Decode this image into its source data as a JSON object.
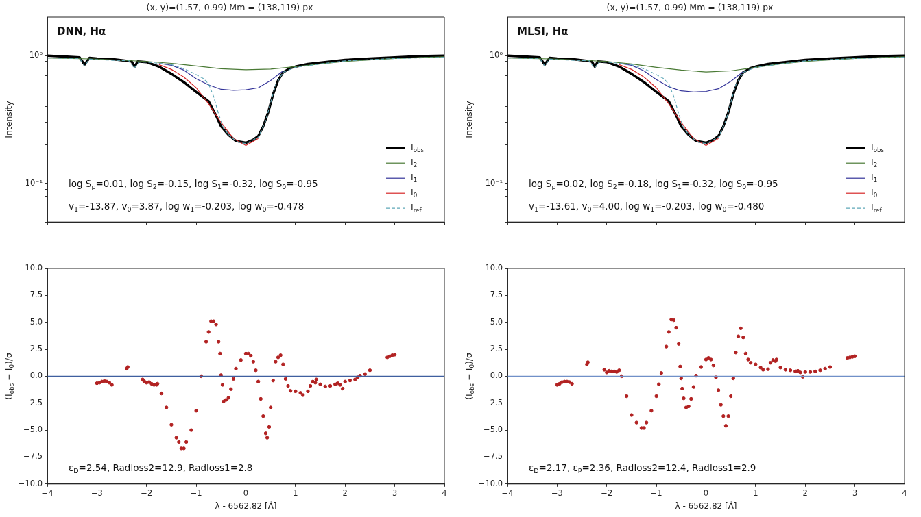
{
  "chart_data": [
    {
      "type": "line",
      "title": "(x, y)=(1.57,-0.99) Mm = (138,119) px",
      "subtitle": "DNN, Hα",
      "ylabel": "Intensity",
      "log": "y",
      "grid": false,
      "legend": "bottom right",
      "marker": "none",
      "tick_labels": "y",
      "xlim": [
        -4,
        4
      ],
      "xticks": [
        -4,
        -3,
        -2,
        -1,
        0,
        1,
        2,
        3,
        4
      ],
      "ylim": [
        0.05,
        2
      ],
      "yticks": [
        {
          "value": 0.05,
          "label": null
        },
        {
          "value": 0.06,
          "label": null
        },
        {
          "value": 0.07,
          "label": null
        },
        {
          "value": 0.08,
          "label": null
        },
        {
          "value": 0.09,
          "label": null
        },
        {
          "value": 0.1,
          "label": "10⁻¹"
        },
        {
          "value": 0.2,
          "label": null
        },
        {
          "value": 0.3,
          "label": null
        },
        {
          "value": 0.4,
          "label": null
        },
        {
          "value": 0.5,
          "label": null
        },
        {
          "value": 0.6,
          "label": null
        },
        {
          "value": 0.7,
          "label": null
        },
        {
          "value": 0.8,
          "label": null
        },
        {
          "value": 0.9,
          "label": null
        },
        {
          "value": 1,
          "label": "10⁰"
        }
      ],
      "annotations": [
        "log S$_{p}$=0.01, log S$_{2}$=-0.15, log S$_{1}$=-0.32, log S$_{0}$=-0.95",
        "v$_{1}$=-13.87, v$_{0}$=3.87, log w$_{1}$=-0.203, log w$_{0}$=-0.478"
      ],
      "series": [
        {
          "name": "I$_{obs}$",
          "color": "#000000",
          "x": [
            -4,
            -3.6,
            -3.35,
            -3.25,
            -3.15,
            -3.0,
            -2.7,
            -2.5,
            -2.3,
            -2.24,
            -2.18,
            -2.0,
            -1.75,
            -1.5,
            -1.25,
            -1.0,
            -0.85,
            -0.75,
            -0.6,
            -0.5,
            -0.35,
            -0.2,
            0,
            0.15,
            0.25,
            0.35,
            0.45,
            0.55,
            0.65,
            0.75,
            0.9,
            1.0,
            1.25,
            1.5,
            2.0,
            2.5,
            3.0,
            3.5,
            4.0
          ],
          "values": [
            1.0,
            0.98,
            0.97,
            0.85,
            0.96,
            0.95,
            0.94,
            0.92,
            0.9,
            0.82,
            0.9,
            0.89,
            0.82,
            0.72,
            0.62,
            0.52,
            0.47,
            0.44,
            0.34,
            0.28,
            0.24,
            0.215,
            0.208,
            0.22,
            0.235,
            0.28,
            0.36,
            0.5,
            0.64,
            0.74,
            0.8,
            0.82,
            0.86,
            0.88,
            0.925,
            0.95,
            0.97,
            0.99,
            1.0
          ]
        },
        {
          "name": "I$_{2}$",
          "color": "#4a7a35",
          "x": [
            -4,
            -3,
            -2,
            -1.5,
            -1,
            -0.5,
            0,
            0.5,
            1,
            1.5,
            2,
            3,
            4
          ],
          "values": [
            0.96,
            0.94,
            0.9,
            0.87,
            0.83,
            0.79,
            0.775,
            0.785,
            0.82,
            0.86,
            0.9,
            0.95,
            0.98
          ]
        },
        {
          "name": "I$_{1}$",
          "color": "#333399",
          "x": [
            -1.75,
            -1.5,
            -1.25,
            -1,
            -0.75,
            -0.5,
            -0.25,
            0,
            0.25,
            0.5,
            0.75
          ],
          "values": [
            0.87,
            0.84,
            0.77,
            0.66,
            0.59,
            0.545,
            0.535,
            0.54,
            0.56,
            0.64,
            0.76
          ]
        },
        {
          "name": "I$_{0}$",
          "color": "#d62728",
          "x": [
            -1.75,
            -1.5,
            -1.25,
            -1,
            -0.75,
            -0.5,
            -0.25,
            0,
            0.25
          ],
          "values": [
            0.85,
            0.78,
            0.68,
            0.56,
            0.42,
            0.3,
            0.225,
            0.198,
            0.225
          ]
        },
        {
          "name": "I$_{ref}$",
          "color": "#5fa8b8",
          "line_style": "dashed",
          "x": [
            -4,
            -3.35,
            -3.25,
            -3.15,
            -3,
            -2.35,
            -2.25,
            -2.15,
            -2,
            -1.5,
            -1.25,
            -1,
            -0.85,
            -0.75,
            -0.65,
            -0.55,
            -0.45,
            -0.3,
            -0.15,
            0,
            0.25,
            0.4,
            0.5,
            0.6,
            0.75,
            1,
            1.5,
            2,
            3,
            4
          ],
          "values": [
            0.96,
            0.95,
            0.83,
            0.94,
            0.93,
            0.91,
            0.8,
            0.89,
            0.89,
            0.85,
            0.79,
            0.71,
            0.66,
            0.6,
            0.48,
            0.35,
            0.27,
            0.23,
            0.21,
            0.205,
            0.23,
            0.31,
            0.43,
            0.59,
            0.74,
            0.81,
            0.86,
            0.91,
            0.95,
            0.97
          ]
        }
      ]
    },
    {
      "type": "line",
      "title": "(x, y)=(1.57,-0.99) Mm = (138,119) px",
      "subtitle": "MLSI, Hα",
      "ylabel": "Intensity",
      "log": "y",
      "grid": false,
      "legend": "bottom right",
      "marker": "none",
      "tick_labels": "y",
      "xlim": [
        -4,
        4
      ],
      "xticks": [
        -4,
        -3,
        -2,
        -1,
        0,
        1,
        2,
        3,
        4
      ],
      "ylim": [
        0.05,
        2
      ],
      "yticks": [
        {
          "value": 0.05,
          "label": null
        },
        {
          "value": 0.06,
          "label": null
        },
        {
          "value": 0.07,
          "label": null
        },
        {
          "value": 0.08,
          "label": null
        },
        {
          "value": 0.09,
          "label": null
        },
        {
          "value": 0.1,
          "label": "10⁻¹"
        },
        {
          "value": 0.2,
          "label": null
        },
        {
          "value": 0.3,
          "label": null
        },
        {
          "value": 0.4,
          "label": null
        },
        {
          "value": 0.5,
          "label": null
        },
        {
          "value": 0.6,
          "label": null
        },
        {
          "value": 0.7,
          "label": null
        },
        {
          "value": 0.8,
          "label": null
        },
        {
          "value": 0.9,
          "label": null
        },
        {
          "value": 1,
          "label": "10⁰"
        }
      ],
      "annotations": [
        "log S$_{p}$=0.02, log S$_{2}$=-0.18, log S$_{1}$=-0.32, log S$_{0}$=-0.95",
        "v$_{1}$=-13.61, v$_{0}$=4.00, log w$_{1}$=-0.203, log w$_{0}$=-0.480"
      ],
      "series": [
        {
          "name": "I$_{obs}$",
          "color": "#000000",
          "x": [
            -4,
            -3.6,
            -3.35,
            -3.25,
            -3.15,
            -3.0,
            -2.7,
            -2.5,
            -2.3,
            -2.24,
            -2.18,
            -2.0,
            -1.75,
            -1.5,
            -1.25,
            -1.0,
            -0.85,
            -0.75,
            -0.6,
            -0.5,
            -0.35,
            -0.2,
            0,
            0.15,
            0.25,
            0.35,
            0.45,
            0.55,
            0.65,
            0.75,
            0.9,
            1.0,
            1.25,
            1.5,
            2.0,
            2.5,
            3.0,
            3.5,
            4.0
          ],
          "values": [
            1.0,
            0.98,
            0.97,
            0.85,
            0.96,
            0.95,
            0.94,
            0.92,
            0.9,
            0.82,
            0.9,
            0.89,
            0.82,
            0.72,
            0.62,
            0.52,
            0.47,
            0.44,
            0.34,
            0.28,
            0.24,
            0.215,
            0.208,
            0.22,
            0.235,
            0.28,
            0.36,
            0.5,
            0.64,
            0.74,
            0.8,
            0.82,
            0.86,
            0.88,
            0.925,
            0.95,
            0.97,
            0.99,
            1.0
          ]
        },
        {
          "name": "I$_{2}$",
          "color": "#4a7a35",
          "x": [
            -4,
            -3,
            -2,
            -1.5,
            -1,
            -0.5,
            0,
            0.5,
            1,
            1.5,
            2,
            3,
            4
          ],
          "values": [
            0.96,
            0.94,
            0.9,
            0.86,
            0.81,
            0.77,
            0.745,
            0.76,
            0.81,
            0.86,
            0.9,
            0.95,
            0.98
          ]
        },
        {
          "name": "I$_{1}$",
          "color": "#333399",
          "x": [
            -1.75,
            -1.5,
            -1.25,
            -1,
            -0.75,
            -0.5,
            -0.25,
            0,
            0.25,
            0.5,
            0.75
          ],
          "values": [
            0.87,
            0.84,
            0.76,
            0.65,
            0.57,
            0.53,
            0.52,
            0.525,
            0.55,
            0.63,
            0.75
          ]
        },
        {
          "name": "I$_{0}$",
          "color": "#d62728",
          "x": [
            -1.75,
            -1.5,
            -1.25,
            -1,
            -0.75,
            -0.5,
            -0.25,
            0,
            0.25
          ],
          "values": [
            0.85,
            0.78,
            0.68,
            0.56,
            0.42,
            0.3,
            0.225,
            0.198,
            0.225
          ]
        },
        {
          "name": "I$_{ref}$",
          "color": "#5fa8b8",
          "line_style": "dashed",
          "x": [
            -4,
            -3.35,
            -3.25,
            -3.15,
            -3,
            -2.35,
            -2.25,
            -2.15,
            -2,
            -1.5,
            -1.25,
            -1,
            -0.85,
            -0.75,
            -0.65,
            -0.55,
            -0.45,
            -0.3,
            -0.15,
            0,
            0.25,
            0.4,
            0.5,
            0.6,
            0.75,
            1,
            1.5,
            2,
            3,
            4
          ],
          "values": [
            0.96,
            0.95,
            0.83,
            0.94,
            0.93,
            0.91,
            0.8,
            0.89,
            0.89,
            0.85,
            0.79,
            0.71,
            0.66,
            0.6,
            0.48,
            0.35,
            0.27,
            0.23,
            0.21,
            0.205,
            0.23,
            0.31,
            0.43,
            0.59,
            0.74,
            0.81,
            0.86,
            0.91,
            0.95,
            0.97
          ]
        }
      ]
    },
    {
      "type": "scatter",
      "xlabel": "λ - 6562.82 [Å]",
      "ylabel": "(I$_{obs}$ − I$_{0}$)/σ",
      "grid": false,
      "legend": false,
      "marker": "circle",
      "xlim": [
        -4,
        4
      ],
      "xticks": [
        {
          "value": -4,
          "label": "−4"
        },
        {
          "value": -3,
          "label": "−3"
        },
        {
          "value": -2,
          "label": "−2"
        },
        {
          "value": -1,
          "label": "−1"
        },
        0,
        1,
        2,
        3,
        4
      ],
      "ylim": [
        -10,
        10
      ],
      "yticks": [
        {
          "value": -10,
          "label": "−10.0"
        },
        {
          "value": -7.5,
          "label": "−7.5"
        },
        {
          "value": -5,
          "label": "−5.0"
        },
        {
          "value": -2.5,
          "label": "−2.5"
        },
        {
          "value": 0,
          "label": "0.0"
        },
        {
          "value": 2.5,
          "label": "2.5"
        },
        {
          "value": 5,
          "label": "5.0"
        },
        {
          "value": 7.5,
          "label": "7.5"
        },
        {
          "value": 10,
          "label": "10.0"
        }
      ],
      "ref_lines": [
        {
          "axis": "y",
          "value": 0,
          "color": "#3f5f9f"
        }
      ],
      "annotations": [
        "ε$_{D}$=2.54, Radloss2=12.9, Radloss1=2.8"
      ],
      "series": [
        {
          "color": "#b22222",
          "x": [
            -3.0,
            -2.95,
            -2.9,
            -2.85,
            -2.8,
            -2.75,
            -2.7,
            -2.4,
            -2.38,
            -2.08,
            -2.05,
            -2.0,
            -1.95,
            -1.9,
            -1.85,
            -1.8,
            -1.78,
            -1.7,
            -1.6,
            -1.5,
            -1.4,
            -1.35,
            -1.3,
            -1.25,
            -1.2,
            -1.1,
            -1.0,
            -0.9,
            -0.8,
            -0.75,
            -0.7,
            -0.65,
            -0.6,
            -0.55,
            -0.52,
            -0.5,
            -0.47,
            -0.45,
            -0.4,
            -0.35,
            -0.3,
            -0.25,
            -0.2,
            -0.1,
            0,
            0.05,
            0.1,
            0.15,
            0.2,
            0.25,
            0.3,
            0.35,
            0.4,
            0.43,
            0.47,
            0.5,
            0.55,
            0.6,
            0.65,
            0.7,
            0.75,
            0.8,
            0.85,
            0.9,
            1.0,
            1.1,
            1.15,
            1.25,
            1.3,
            1.35,
            1.4,
            1.42,
            1.5,
            1.6,
            1.7,
            1.8,
            1.85,
            1.9,
            1.95,
            2.0,
            2.1,
            2.2,
            2.25,
            2.3,
            2.4,
            2.5,
            2.85,
            2.9,
            2.95,
            3.0
          ],
          "values": [
            -0.65,
            -0.6,
            -0.5,
            -0.45,
            -0.5,
            -0.6,
            -0.8,
            0.7,
            0.85,
            -0.3,
            -0.45,
            -0.6,
            -0.55,
            -0.7,
            -0.8,
            -0.8,
            -0.7,
            -1.6,
            -2.9,
            -4.5,
            -5.7,
            -6.1,
            -6.7,
            -6.7,
            -6.1,
            -5.0,
            -3.2,
            0,
            3.2,
            4.1,
            5.1,
            5.1,
            4.8,
            3.2,
            2.1,
            0.1,
            -0.8,
            -2.35,
            -2.2,
            -2.0,
            -1.2,
            -0.25,
            0.7,
            1.5,
            2.1,
            2.1,
            1.9,
            1.35,
            0.55,
            -0.5,
            -2.1,
            -3.7,
            -5.3,
            -5.7,
            -4.7,
            -2.9,
            -0.4,
            1.35,
            1.75,
            1.95,
            1.1,
            -0.25,
            -0.9,
            -1.35,
            -1.4,
            -1.55,
            -1.75,
            -1.4,
            -0.9,
            -0.5,
            -0.6,
            -0.3,
            -0.75,
            -0.95,
            -0.9,
            -0.75,
            -0.65,
            -0.8,
            -1.15,
            -0.5,
            -0.4,
            -0.3,
            -0.1,
            0.05,
            0.2,
            0.55,
            1.75,
            1.85,
            1.95,
            2.0
          ]
        }
      ]
    },
    {
      "type": "scatter",
      "xlabel": "λ - 6562.82 [Å]",
      "ylabel": "(I$_{obs}$ − I$_{0}$)/σ",
      "grid": false,
      "legend": false,
      "marker": "circle",
      "xlim": [
        -4,
        4
      ],
      "xticks": [
        {
          "value": -4,
          "label": "−4"
        },
        {
          "value": -3,
          "label": "−3"
        },
        {
          "value": -2,
          "label": "−2"
        },
        {
          "value": -1,
          "label": "−1"
        },
        0,
        1,
        2,
        3,
        4
      ],
      "ylim": [
        -10,
        10
      ],
      "yticks": [
        {
          "value": -10,
          "label": "−10.0"
        },
        {
          "value": -7.5,
          "label": "−7.5"
        },
        {
          "value": -5,
          "label": "−5.0"
        },
        {
          "value": -2.5,
          "label": "−2.5"
        },
        {
          "value": 0,
          "label": "0.0"
        },
        {
          "value": 2.5,
          "label": "2.5"
        },
        {
          "value": 5,
          "label": "5.0"
        },
        {
          "value": 7.5,
          "label": "7.5"
        },
        {
          "value": 10,
          "label": "10.0"
        }
      ],
      "ref_lines": [
        {
          "axis": "y",
          "value": 0,
          "color": "#7090c8"
        }
      ],
      "annotations": [
        "ε$_{D}$=2.17, ε$_{P}$=2.36, Radloss2=12.4, Radloss1=2.9"
      ],
      "series": [
        {
          "color": "#b22222",
          "x": [
            -3.0,
            -2.95,
            -2.9,
            -2.85,
            -2.8,
            -2.75,
            -2.7,
            -2.4,
            -2.38,
            -2.05,
            -2.0,
            -1.95,
            -1.9,
            -1.85,
            -1.8,
            -1.75,
            -1.7,
            -1.6,
            -1.5,
            -1.4,
            -1.3,
            -1.25,
            -1.2,
            -1.1,
            -1.0,
            -0.95,
            -0.9,
            -0.8,
            -0.75,
            -0.7,
            -0.65,
            -0.6,
            -0.55,
            -0.52,
            -0.5,
            -0.48,
            -0.45,
            -0.4,
            -0.35,
            -0.3,
            -0.25,
            -0.2,
            -0.1,
            0,
            0.05,
            0.1,
            0.15,
            0.2,
            0.25,
            0.3,
            0.35,
            0.4,
            0.45,
            0.5,
            0.55,
            0.6,
            0.65,
            0.7,
            0.75,
            0.8,
            0.85,
            0.9,
            1.0,
            1.1,
            1.15,
            1.25,
            1.3,
            1.35,
            1.4,
            1.42,
            1.5,
            1.6,
            1.7,
            1.8,
            1.85,
            1.9,
            1.95,
            2.0,
            2.1,
            2.2,
            2.3,
            2.4,
            2.5,
            2.85,
            2.9,
            2.95,
            3.0
          ],
          "values": [
            -0.8,
            -0.7,
            -0.55,
            -0.5,
            -0.5,
            -0.55,
            -0.7,
            1.1,
            1.3,
            0.6,
            0.35,
            0.5,
            0.45,
            0.45,
            0.4,
            0.55,
            0.0,
            -1.85,
            -3.6,
            -4.3,
            -4.8,
            -4.8,
            -4.3,
            -3.2,
            -1.85,
            -0.75,
            0.3,
            2.75,
            4.1,
            5.25,
            5.2,
            4.5,
            3.0,
            0.9,
            -0.2,
            -1.15,
            -2.05,
            -2.9,
            -2.8,
            -2.1,
            -1.0,
            0.05,
            0.85,
            1.55,
            1.7,
            1.55,
            1.0,
            -0.1,
            -1.3,
            -2.65,
            -3.7,
            -4.6,
            -3.7,
            -1.85,
            -0.2,
            2.2,
            3.7,
            4.45,
            3.6,
            2.1,
            1.55,
            1.25,
            1.1,
            0.8,
            0.6,
            0.65,
            1.25,
            1.5,
            1.4,
            1.55,
            0.8,
            0.6,
            0.55,
            0.45,
            0.5,
            0.35,
            -0.05,
            0.4,
            0.4,
            0.45,
            0.55,
            0.7,
            0.85,
            1.7,
            1.75,
            1.8,
            1.85
          ]
        }
      ]
    }
  ]
}
